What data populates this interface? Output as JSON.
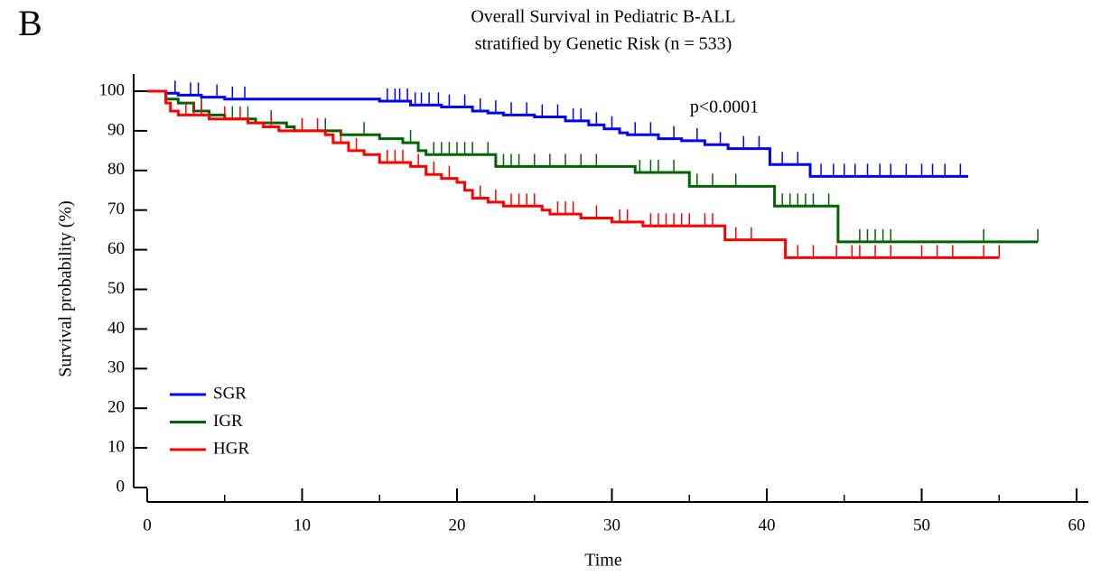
{
  "chart_data": {
    "type": "kaplan-meier",
    "panel_label": "B",
    "title": "Overall Survival in Pediatric B-ALL",
    "subtitle": "stratified by Genetic Risk (n = 533)",
    "annotation": "p<0.0001",
    "x_label": "Time",
    "y_label": "Survival probability (%)",
    "xlim": [
      0,
      60
    ],
    "xticks": [
      0,
      10,
      20,
      30,
      40,
      50,
      60
    ],
    "ylim": [
      0,
      100
    ],
    "yticks": [
      0,
      10,
      20,
      30,
      40,
      50,
      60,
      70,
      80,
      90,
      100
    ],
    "legend": "lower left",
    "series": [
      {
        "name": "SGR",
        "color": "#0000ff",
        "x": [
          0,
          1.2,
          2,
          3.5,
          5,
          15,
          17,
          19,
          21,
          22,
          23,
          25,
          27,
          28.5,
          29.5,
          30.5,
          31,
          33,
          34.5,
          36,
          37.5,
          40.2,
          42.8,
          53
        ],
        "values": [
          100,
          99.5,
          99,
          98.5,
          98,
          97.5,
          96.5,
          96,
          95,
          94.5,
          94,
          93.5,
          92.5,
          91.5,
          90.5,
          89.5,
          89,
          88,
          87.5,
          86.5,
          85.5,
          81.5,
          78.5,
          78.5
        ],
        "censored": [
          1.8,
          2.8,
          3.3,
          4.5,
          5.5,
          6.3,
          15.5,
          16,
          16.3,
          16.8,
          17.3,
          17.7,
          18.2,
          18.8,
          19.5,
          20.5,
          21.5,
          22.5,
          23.5,
          24.5,
          25.5,
          26.5,
          27.5,
          28,
          29,
          30,
          31.5,
          32.5,
          34,
          35.5,
          37,
          38.5,
          39.5,
          41,
          42,
          43.5,
          44.3,
          45,
          45.7,
          46.5,
          47.3,
          48,
          49,
          50,
          50.7,
          51.5,
          52.5
        ]
      },
      {
        "name": "IGR",
        "color": "#006400",
        "x": [
          0,
          1.2,
          2,
          3,
          4,
          5,
          7,
          9,
          9.5,
          12.5,
          15,
          16.5,
          17.5,
          18,
          22.5,
          31.5,
          35,
          40.5,
          44.6,
          57.5
        ],
        "values": [
          100,
          98,
          97,
          95,
          94,
          93,
          92,
          91,
          90,
          89,
          88,
          87,
          85,
          84,
          81,
          79.5,
          76,
          71,
          62,
          62
        ],
        "censored": [
          3.5,
          5.5,
          6.5,
          8,
          10,
          11.5,
          14,
          17,
          18.5,
          19,
          19.5,
          20,
          20.5,
          21,
          22,
          23,
          23.5,
          24,
          25,
          26,
          27,
          28,
          29,
          31.8,
          32.5,
          33,
          34,
          35.5,
          36.5,
          38,
          41,
          41.5,
          42,
          42.5,
          43,
          44,
          46,
          46.5,
          47,
          47.5,
          48,
          54,
          57.5
        ]
      },
      {
        "name": "HGR",
        "color": "#ff0000",
        "x": [
          0,
          1.2,
          1.5,
          2,
          4,
          6.5,
          7.5,
          8.5,
          11.5,
          12,
          13,
          14,
          15,
          17,
          18,
          19,
          20,
          20.5,
          21,
          22,
          23,
          25.5,
          26,
          28,
          30,
          32,
          37.3,
          41.2,
          55
        ],
        "values": [
          100,
          97,
          95,
          94,
          93,
          92,
          91,
          90,
          89,
          87,
          85,
          84,
          82,
          81,
          79,
          78,
          77,
          75,
          73,
          72,
          71,
          70,
          69,
          68,
          67,
          66,
          62.5,
          58,
          58
        ],
        "censored": [
          2.5,
          3,
          3.5,
          5,
          6,
          8,
          10,
          11,
          12.5,
          13.5,
          15.5,
          16,
          16.5,
          17.5,
          18.5,
          19.5,
          21.5,
          22.5,
          23.5,
          24,
          24.5,
          25,
          26.5,
          27,
          27.5,
          29,
          30.5,
          31,
          32.5,
          33,
          33.5,
          34,
          34.5,
          35,
          36,
          36.5,
          38,
          39,
          42,
          43,
          44.5,
          45.5,
          46,
          47,
          48,
          50,
          51,
          52,
          54,
          55
        ]
      }
    ]
  }
}
